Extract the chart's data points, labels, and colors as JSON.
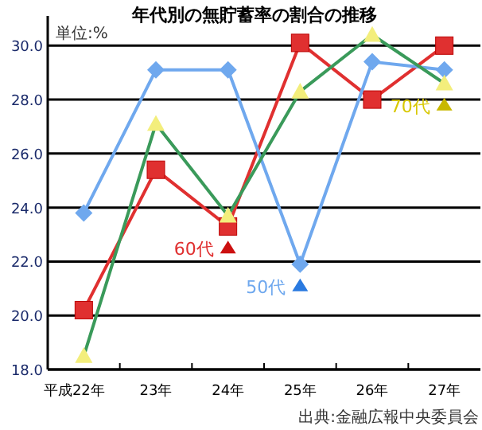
{
  "chart_data": {
    "type": "line",
    "title": "年代別の無貯蓄率の割合の推移",
    "categories": [
      "平成22年",
      "23年",
      "24年",
      "25年",
      "26年",
      "27年"
    ],
    "series": [
      {
        "name": "60代",
        "color": "#e03030",
        "marker": "square",
        "values": [
          20.2,
          25.4,
          23.3,
          30.1,
          28.0,
          30.0
        ]
      },
      {
        "name": "50代",
        "color": "#6fa8ee",
        "marker": "diamond",
        "values": [
          23.8,
          29.1,
          29.1,
          21.9,
          29.4,
          29.1
        ]
      },
      {
        "name": "70代",
        "color": "#3a9a5a",
        "colors": [
          "#f3ee7c",
          "#f3ee7c",
          "#f3ee7c",
          "#f3ee7c",
          "#f3ee7c",
          "#f3ee7c"
        ],
        "marker": "triangle",
        "values": [
          18.5,
          27.1,
          23.7,
          28.3,
          30.4,
          28.6
        ]
      }
    ],
    "ylim": [
      18,
      31.1
    ],
    "yticks": [
      {
        "value": 18,
        "label": "18.0"
      },
      {
        "value": 20,
        "label": "20.0"
      },
      {
        "value": 22,
        "label": "22.0"
      },
      {
        "value": 24,
        "label": "24.0"
      },
      {
        "value": 26,
        "label": "26.0"
      },
      {
        "value": 28,
        "label": "28.0"
      },
      {
        "value": 30,
        "label": "30.0"
      }
    ],
    "grid": "y",
    "annotations": [
      {
        "text": "単位:%"
      },
      {
        "text": "出典:金融広報中央委員会"
      }
    ]
  }
}
